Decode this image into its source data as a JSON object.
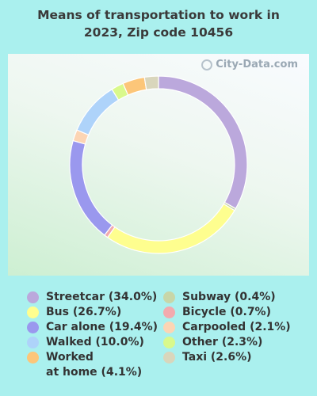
{
  "chart_data": {
    "type": "pie",
    "title": "Means of transportation to work in 2023, Zip code 10456",
    "title_lines": [
      "Means of transportation to work in",
      "2023, Zip code 10456"
    ],
    "slices": [
      {
        "label": "Streetcar (34.0%)",
        "value": 34.0,
        "color": "#bba8dc"
      },
      {
        "label": "Subway (0.4%)",
        "value": 0.4,
        "color": "#c8d6a8"
      },
      {
        "label": "Bus (26.7%)",
        "value": 26.7,
        "color": "#fefe8f"
      },
      {
        "label": "Bicycle (0.7%)",
        "value": 0.7,
        "color": "#f2aaae"
      },
      {
        "label": "Car alone (19.4%)",
        "value": 19.4,
        "color": "#9a98ee"
      },
      {
        "label": "Carpooled (2.1%)",
        "value": 2.1,
        "color": "#fcd5b4"
      },
      {
        "label": "Walked (10.0%)",
        "value": 10.0,
        "color": "#aed3fa"
      },
      {
        "label": "Other (2.3%)",
        "value": 2.3,
        "color": "#d9f98c"
      },
      {
        "label": "Worked\nat home (4.1%)",
        "value": 4.1,
        "color": "#fcc679"
      },
      {
        "label": "Taxi (2.6%)",
        "value": 2.6,
        "color": "#d9d6bc"
      }
    ],
    "legend_columns": [
      [
        "Streetcar (34.0%)",
        "Bus (26.7%)",
        "Car alone (19.4%)",
        "Walked (10.0%)",
        "Worked\nat home (4.1%)"
      ],
      [
        "Subway (0.4%)",
        "Bicycle (0.7%)",
        "Carpooled (2.1%)",
        "Other (2.3%)",
        "Taxi (2.6%)"
      ]
    ]
  },
  "watermark": "City-Data.com"
}
